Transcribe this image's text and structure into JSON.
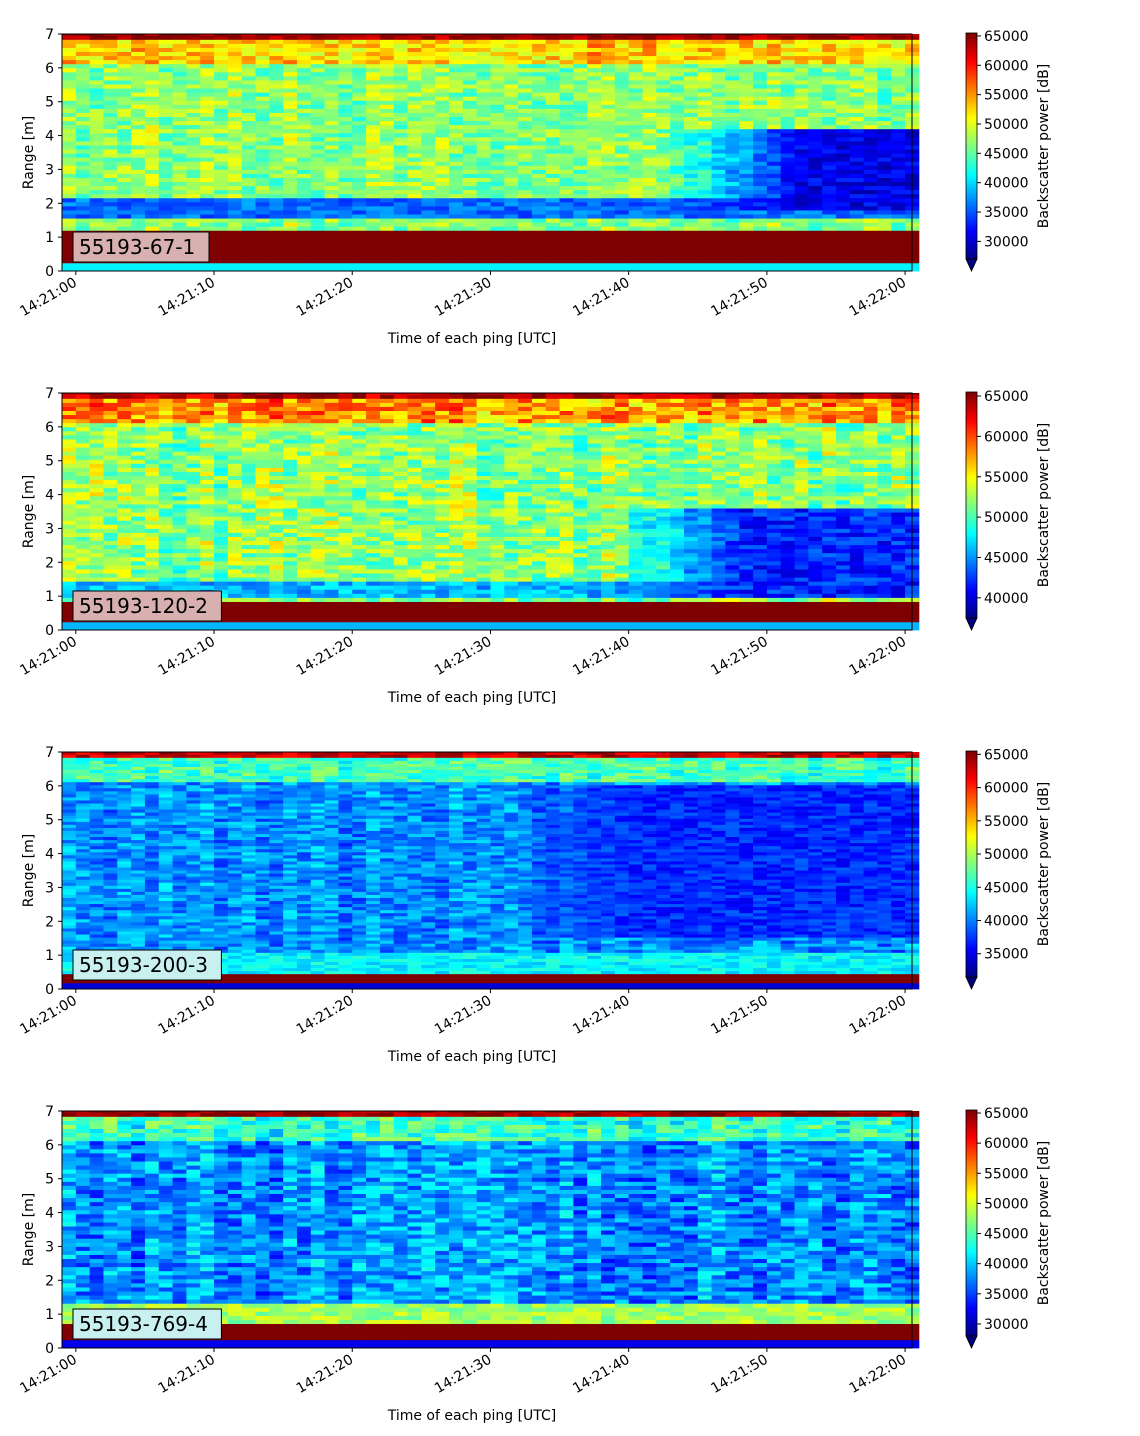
{
  "figure": {
    "xlabel": "Time of each ping [UTC]",
    "ylabel": "Range [m]",
    "colorbar_label": "Backscatter power [dB]",
    "colormap": "jet",
    "colormap_stops": [
      "#00007f",
      "#0000ff",
      "#007fff",
      "#00ffff",
      "#7fff7f",
      "#ffff00",
      "#ff7f00",
      "#ff0000",
      "#7f0000"
    ]
  },
  "chart_data": [
    {
      "type": "heatmap",
      "tag": "55193-67-1",
      "tag_bg": "#d9b0b0",
      "xlabel": "Time of each ping [UTC]",
      "ylabel": "Range [m]",
      "x_ticks": [
        "14:21:00",
        "14:21:10",
        "14:21:20",
        "14:21:30",
        "14:21:40",
        "14:21:50",
        "14:22:00"
      ],
      "y_ticks": [
        "0",
        "1",
        "2",
        "3",
        "4",
        "5",
        "6",
        "7"
      ],
      "x_range": [
        "14:20:59",
        "14:22:00.5"
      ],
      "y_range": [
        0,
        7
      ],
      "colorbar": {
        "label": "Backscatter power [dB]",
        "min": 27000,
        "max": 65500,
        "ticks": [
          30000,
          35000,
          40000,
          45000,
          50000,
          55000,
          60000,
          65000
        ],
        "ticklabels": [
          "30000",
          "35000",
          "40000",
          "45000",
          "50000",
          "55000",
          "60000",
          "65000"
        ],
        "extend": "min"
      },
      "profile": {
        "bottom_band": [
          0.2,
          1.15
        ],
        "top_band": 6.8,
        "top_value": 63000,
        "mid_value": 47000,
        "low_layer": [
          1.5,
          2.1
        ],
        "low_value": 36000,
        "shadow_start_s": 42,
        "shadow_range": [
          1.8,
          4.2
        ],
        "shadow_value": 31000,
        "noise": 5000
      }
    },
    {
      "type": "heatmap",
      "tag": "55193-120-2",
      "tag_bg": "#d9b0b0",
      "xlabel": "Time of each ping [UTC]",
      "ylabel": "Range [m]",
      "x_ticks": [
        "14:21:00",
        "14:21:10",
        "14:21:20",
        "14:21:30",
        "14:21:40",
        "14:21:50",
        "14:22:00"
      ],
      "y_ticks": [
        "0",
        "1",
        "2",
        "3",
        "4",
        "5",
        "6",
        "7"
      ],
      "x_range": [
        "14:20:59",
        "14:22:00.5"
      ],
      "y_range": [
        0,
        7
      ],
      "colorbar": {
        "label": "Backscatter power [dB]",
        "min": 37500,
        "max": 65500,
        "ticks": [
          40000,
          45000,
          50000,
          55000,
          60000,
          65000
        ],
        "ticklabels": [
          "40000",
          "45000",
          "50000",
          "55000",
          "60000",
          "65000"
        ],
        "extend": "min"
      },
      "profile": {
        "bottom_band": [
          0.2,
          0.8
        ],
        "top_band": 6.8,
        "top_value": 63000,
        "mid_value": 52000,
        "low_layer": [
          0.9,
          1.4
        ],
        "low_value": 46000,
        "shadow_start_s": 38,
        "shadow_range": [
          0.9,
          3.6
        ],
        "shadow_value": 42000,
        "noise": 4500
      }
    },
    {
      "type": "heatmap",
      "tag": "55193-200-3",
      "tag_bg": "#c8f0f0",
      "xlabel": "Time of each ping [UTC]",
      "ylabel": "Range [m]",
      "x_ticks": [
        "14:21:00",
        "14:21:10",
        "14:21:20",
        "14:21:30",
        "14:21:40",
        "14:21:50",
        "14:22:00"
      ],
      "y_ticks": [
        "0",
        "1",
        "2",
        "3",
        "4",
        "5",
        "6",
        "7"
      ],
      "x_range": [
        "14:20:59",
        "14:22:00.5"
      ],
      "y_range": [
        0,
        7
      ],
      "colorbar": {
        "label": "Backscatter power [dB]",
        "min": 31500,
        "max": 65500,
        "ticks": [
          35000,
          40000,
          45000,
          50000,
          55000,
          60000,
          65000
        ],
        "ticklabels": [
          "35000",
          "40000",
          "45000",
          "50000",
          "55000",
          "60000",
          "65000"
        ],
        "extend": "min"
      },
      "profile": {
        "bottom_band": [
          0.1,
          0.4
        ],
        "top_band": 6.75,
        "top_value": 62000,
        "mid_value": 40500,
        "low_layer": [
          0.4,
          1.0
        ],
        "low_value": 44000,
        "shadow_start_s": 30,
        "shadow_range": [
          1.5,
          6.0
        ],
        "shadow_value": 37000,
        "noise": 4000
      }
    },
    {
      "type": "heatmap",
      "tag": "55193-769-4",
      "tag_bg": "#c8f0f0",
      "xlabel": "Time of each ping [UTC]",
      "ylabel": "Range [m]",
      "x_ticks": [
        "14:21:00",
        "14:21:10",
        "14:21:20",
        "14:21:30",
        "14:21:40",
        "14:21:50",
        "14:22:00"
      ],
      "y_ticks": [
        "0",
        "1",
        "2",
        "3",
        "4",
        "5",
        "6",
        "7"
      ],
      "x_range": [
        "14:20:59",
        "14:22:00.5"
      ],
      "y_range": [
        0,
        7
      ],
      "colorbar": {
        "label": "Backscatter power [dB]",
        "min": 28000,
        "max": 65500,
        "ticks": [
          30000,
          35000,
          40000,
          45000,
          50000,
          55000,
          60000,
          65000
        ],
        "ticklabels": [
          "30000",
          "35000",
          "40000",
          "45000",
          "50000",
          "55000",
          "60000",
          "65000"
        ],
        "extend": "min"
      },
      "profile": {
        "bottom_band": [
          0.2,
          0.65
        ],
        "top_band": 6.75,
        "top_value": 63000,
        "mid_value": 38000,
        "low_layer": [
          0.65,
          1.3
        ],
        "low_value": 48000,
        "shadow_start_s": 60,
        "shadow_range": [
          0,
          0
        ],
        "shadow_value": 33000,
        "noise": 5500
      }
    }
  ]
}
